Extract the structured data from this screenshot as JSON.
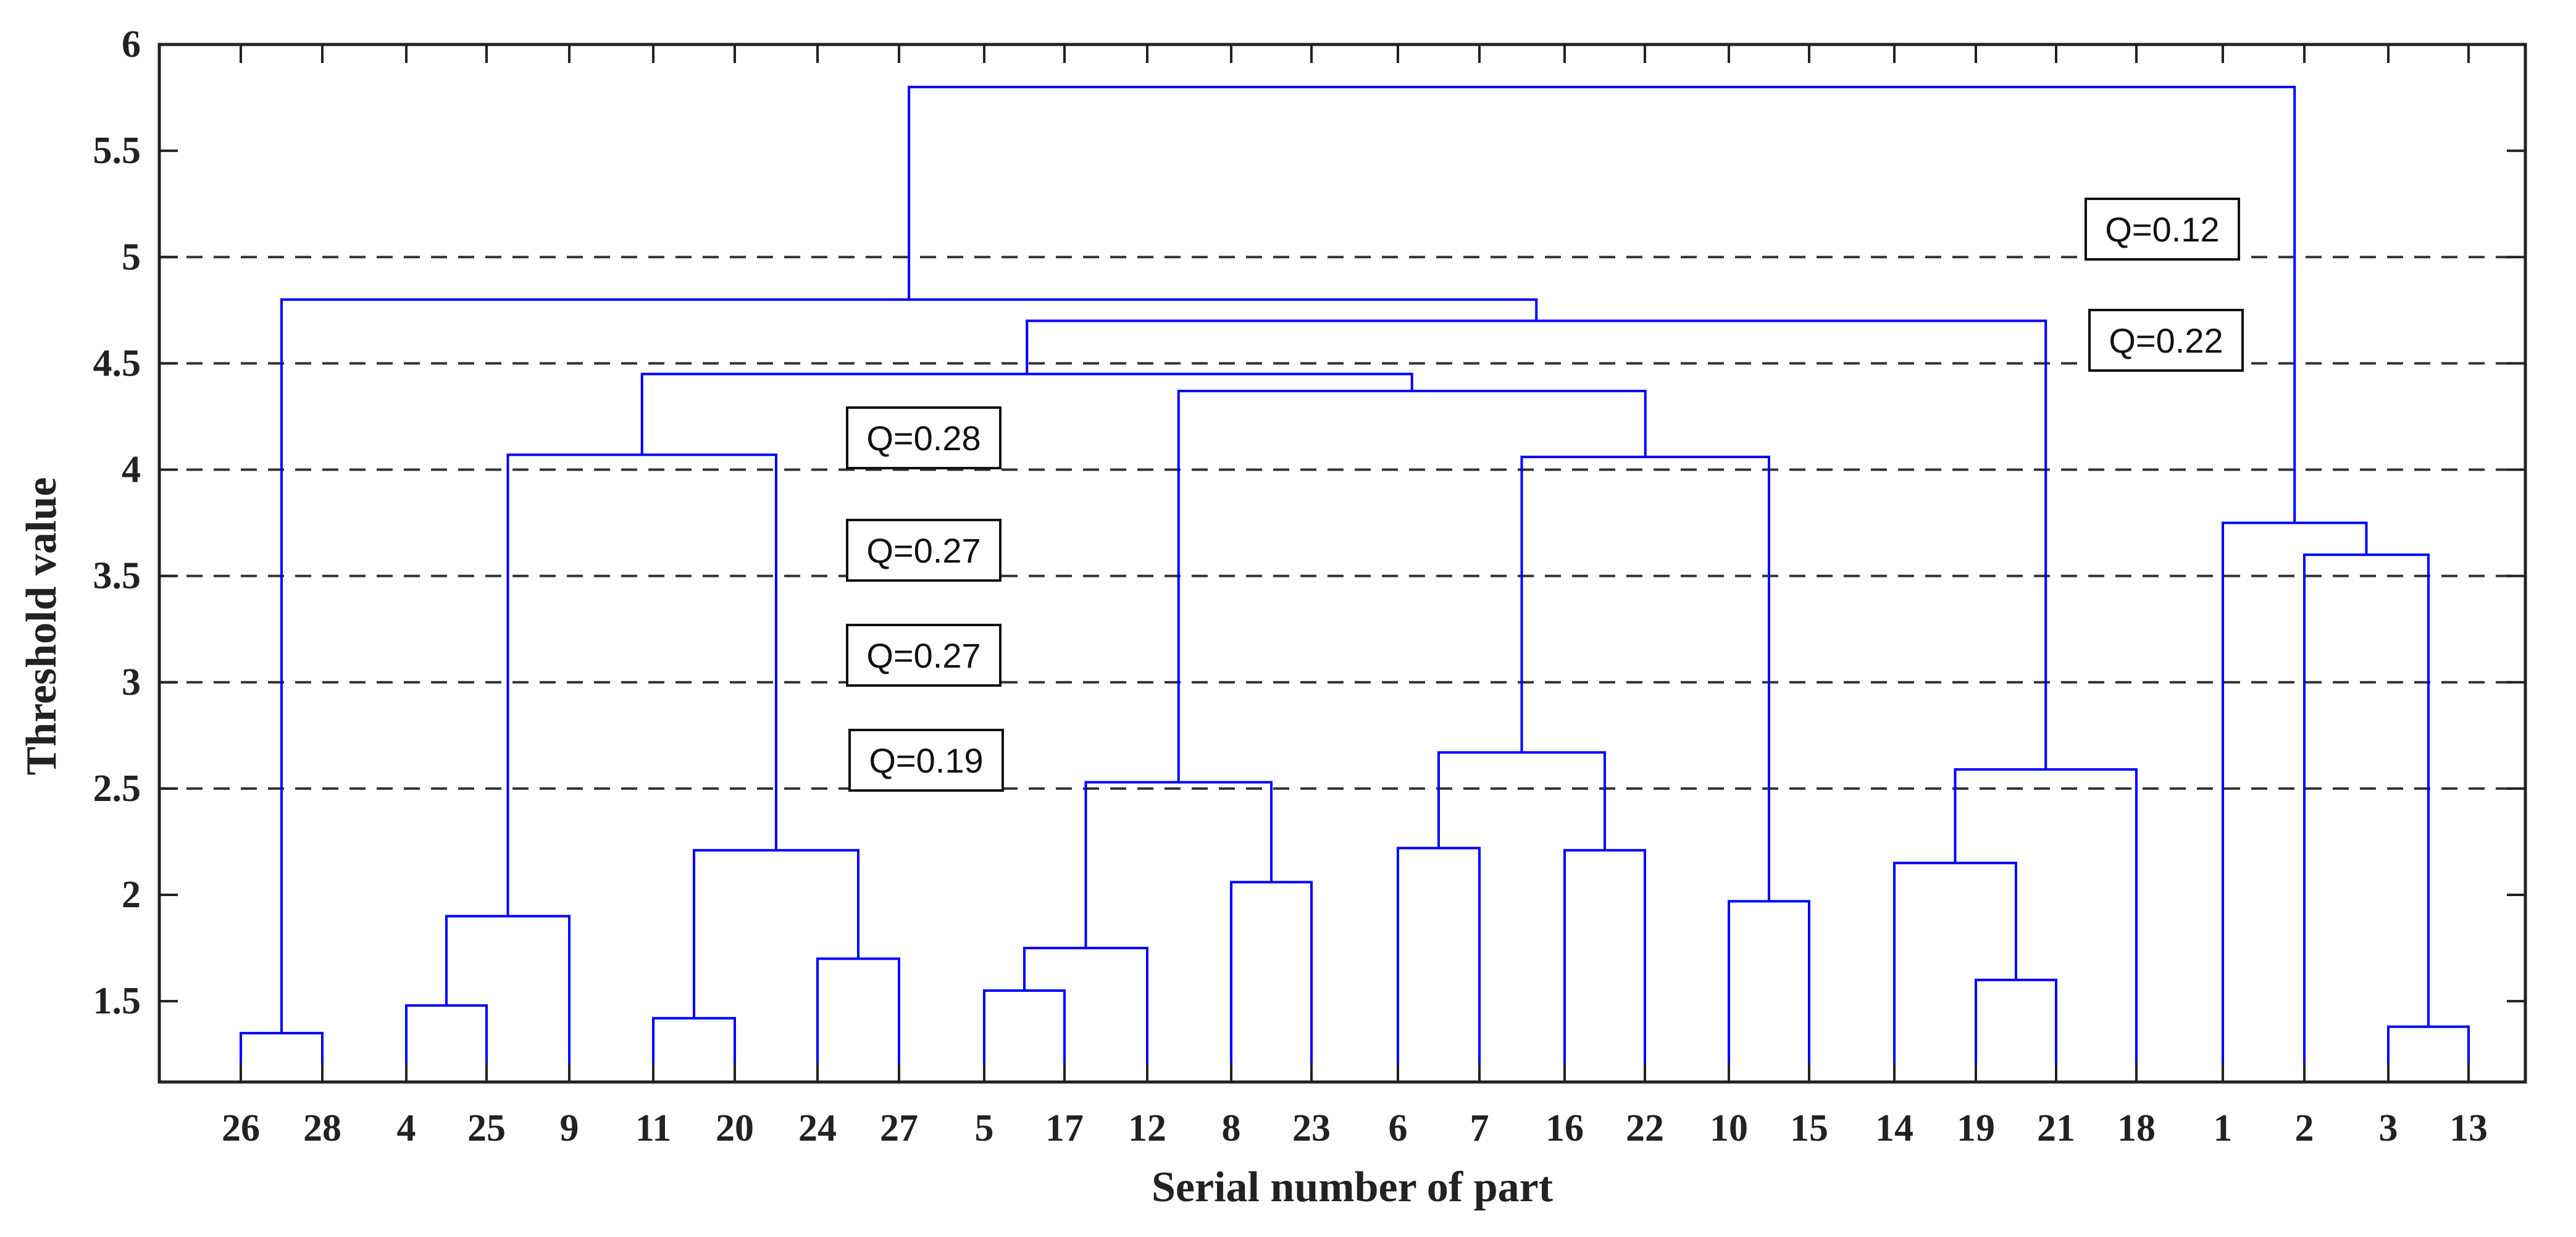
{
  "chart_data": {
    "type": "dendrogram",
    "xlabel": "Serial number of part",
    "ylabel": "Threshold value",
    "ylim": [
      1.12,
      6
    ],
    "yticks": [
      "1.5",
      "2",
      "2.5",
      "3",
      "3.5",
      "4",
      "4.5",
      "5",
      "5.5",
      "6"
    ],
    "leaf_order": [
      "26",
      "28",
      "4",
      "25",
      "9",
      "11",
      "20",
      "24",
      "27",
      "5",
      "17",
      "12",
      "8",
      "23",
      "6",
      "7",
      "16",
      "22",
      "10",
      "15",
      "14",
      "19",
      "21",
      "18",
      "1",
      "2",
      "3",
      "13"
    ],
    "merges": [
      {
        "left": "26",
        "right": "28",
        "height": 1.35
      },
      {
        "left": "4",
        "right": "25",
        "height": 1.48
      },
      {
        "left": "{4,25}",
        "right": "9",
        "height": 1.9
      },
      {
        "left": "11",
        "right": "20",
        "height": 1.42
      },
      {
        "left": "24",
        "right": "27",
        "height": 1.7
      },
      {
        "left": "{11,20}",
        "right": "{24,27}",
        "height": 2.21
      },
      {
        "left": "{4,25,9}",
        "right": "{11,20,24,27}",
        "height": 4.07
      },
      {
        "left": "5",
        "right": "17",
        "height": 1.55
      },
      {
        "left": "{5,17}",
        "right": "12",
        "height": 1.75
      },
      {
        "left": "8",
        "right": "23",
        "height": 2.06
      },
      {
        "left": "{5,17,12}",
        "right": "{8,23}",
        "height": 2.53
      },
      {
        "left": "6",
        "right": "7",
        "height": 2.22
      },
      {
        "left": "16",
        "right": "22",
        "height": 2.21
      },
      {
        "left": "{6,7}",
        "right": "{16,22}",
        "height": 2.67
      },
      {
        "left": "10",
        "right": "15",
        "height": 1.97
      },
      {
        "left": "{6,7,16,22}",
        "right": "{10,15}",
        "height": 4.06
      },
      {
        "left": "{5,17,12,8,23}",
        "right": "{6,7,16,22,10,15}",
        "height": 4.37
      },
      {
        "left": "{4..27}",
        "right": "{5..15}",
        "height": 4.45
      },
      {
        "left": "19",
        "right": "21",
        "height": 1.6
      },
      {
        "left": "14",
        "right": "{19,21}",
        "height": 2.15
      },
      {
        "left": "{14,19,21}",
        "right": "18",
        "height": 2.59
      },
      {
        "left": "{4..15}",
        "right": "{14,19,21,18}",
        "height": 4.7
      },
      {
        "left": "{26,28}",
        "right": "{4..18}",
        "height": 4.8
      },
      {
        "left": "3",
        "right": "13",
        "height": 1.38
      },
      {
        "left": "2",
        "right": "{3,13}",
        "height": 3.6
      },
      {
        "left": "1",
        "right": "{2,3,13}",
        "height": 3.75
      },
      {
        "left": "{26..18}",
        "right": "{1,2,3,13}",
        "height": 5.8
      }
    ],
    "threshold_lines": [
      {
        "y": 5.0,
        "label": "Q=0.12"
      },
      {
        "y": 4.5,
        "label": "Q=0.22"
      },
      {
        "y": 4.0,
        "label": "Q=0.28"
      },
      {
        "y": 3.5,
        "label": "Q=0.27"
      },
      {
        "y": 3.0,
        "label": "Q=0.27"
      },
      {
        "y": 2.5,
        "label": "Q=0.19"
      }
    ],
    "colors": {
      "dendrogram": "#0000ff",
      "axis": "#222222",
      "threshold": "#333333"
    }
  }
}
